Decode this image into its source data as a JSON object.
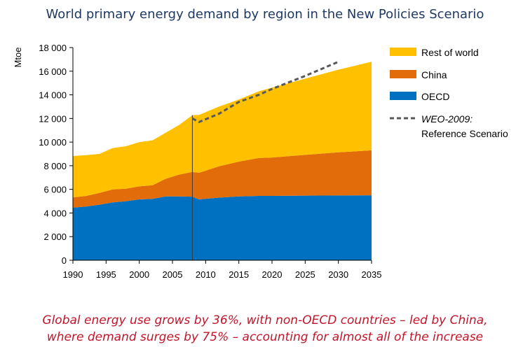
{
  "chart_data": {
    "type": "area",
    "title": "World primary energy demand by region in the New Policies Scenario",
    "ylabel": "Mtoe",
    "xlabel": "",
    "xlim": [
      1990,
      2035
    ],
    "ylim": [
      0,
      18000
    ],
    "x_ticks": [
      "1990",
      "1995",
      "2000",
      "2005",
      "2010",
      "2015",
      "2020",
      "2025",
      "2030",
      "2035"
    ],
    "y_ticks": [
      "0",
      "2 000",
      "4 000",
      "6 000",
      "8 000",
      "10 000",
      "12 000",
      "14 000",
      "16 000",
      "18 000"
    ],
    "stacked": true,
    "x": [
      1990,
      1992,
      1994,
      1996,
      1998,
      2000,
      2002,
      2004,
      2006,
      2008,
      2009,
      2012,
      2015,
      2018,
      2020,
      2025,
      2030,
      2035
    ],
    "series": [
      {
        "name": "OECD",
        "color": "#0070c0",
        "values": [
          4450,
          4550,
          4700,
          4900,
          5000,
          5150,
          5200,
          5400,
          5400,
          5380,
          5150,
          5300,
          5400,
          5450,
          5450,
          5470,
          5480,
          5500
        ]
      },
      {
        "name": "China",
        "color": "#e36c0a",
        "values": [
          870,
          900,
          1000,
          1100,
          1050,
          1100,
          1150,
          1500,
          1850,
          2100,
          2250,
          2650,
          2950,
          3200,
          3250,
          3450,
          3650,
          3800
        ]
      },
      {
        "name": "Rest of world",
        "color": "#ffc000",
        "values": [
          3500,
          3450,
          3300,
          3500,
          3600,
          3750,
          3800,
          3900,
          4200,
          4800,
          4900,
          5050,
          5250,
          5650,
          5900,
          6450,
          7000,
          7500
        ]
      }
    ],
    "reference_line": {
      "name": "WEO-2009: Reference Scenario",
      "style": "dashed",
      "color": "#595959",
      "x": [
        2008,
        2009,
        2012,
        2015,
        2018,
        2020,
        2025,
        2030
      ],
      "values": [
        12000,
        11700,
        12400,
        13400,
        14000,
        14500,
        15600,
        16800
      ]
    },
    "divider_year": 2008,
    "legend_position": "right",
    "legend_order": [
      "Rest of world",
      "China",
      "OECD",
      "WEO-2009: Reference Scenario"
    ],
    "legend_labels": [
      "Rest of world",
      "China",
      "OECD",
      "WEO-2009:",
      "Reference Scenario"
    ]
  },
  "caption": {
    "line1": "Global energy use grows by 36%, with non-OECD countries – led by China,",
    "line2": "where demand surges by 75% – accounting for almost all of the increase"
  },
  "colors": {
    "title": "#1f3864",
    "caption": "#c0152a"
  }
}
